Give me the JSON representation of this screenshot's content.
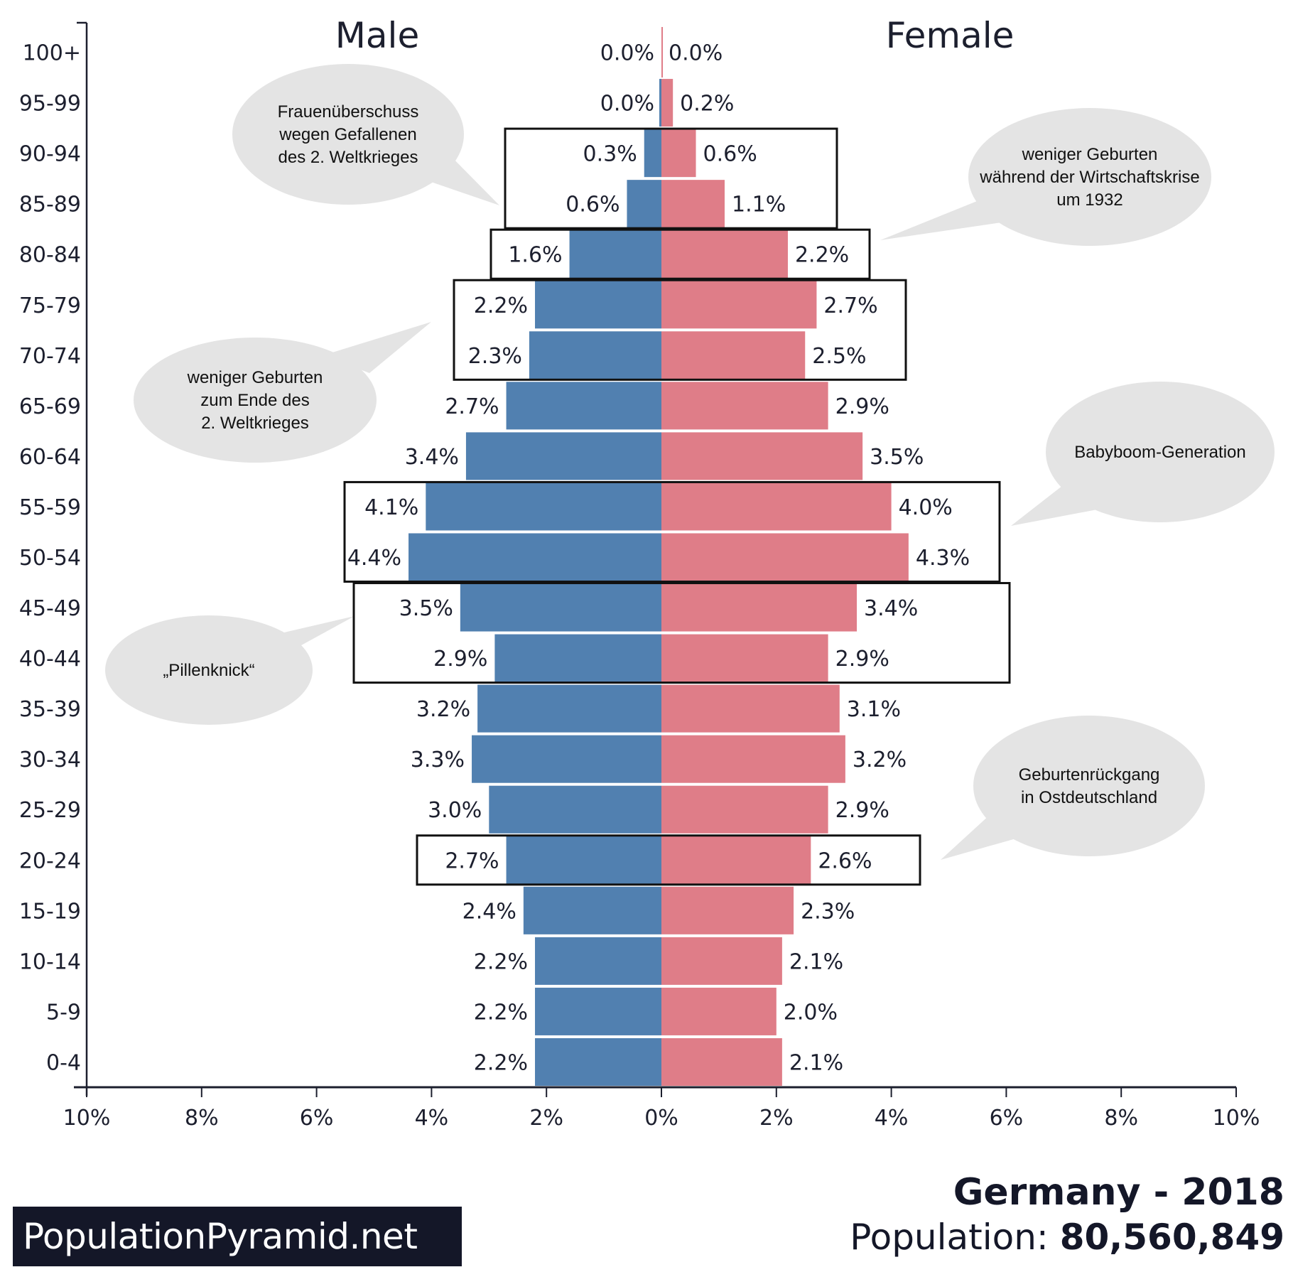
{
  "chart_data": {
    "type": "bar",
    "subtype": "population-pyramid",
    "title": "Germany - 2018",
    "population_label": "Population:",
    "population_value": "80,560,849",
    "xlabel": "",
    "ylabel": "",
    "xlim": [
      -10,
      10
    ],
    "x_ticks": [
      "10%",
      "8%",
      "6%",
      "4%",
      "2%",
      "0%",
      "2%",
      "4%",
      "6%",
      "8%",
      "10%"
    ],
    "grid": false,
    "categories": [
      "100+",
      "95-99",
      "90-94",
      "85-89",
      "80-84",
      "75-79",
      "70-74",
      "65-69",
      "60-64",
      "55-59",
      "50-54",
      "45-49",
      "40-44",
      "35-39",
      "30-34",
      "25-29",
      "20-24",
      "15-19",
      "10-14",
      "5-9",
      "0-4"
    ],
    "series": [
      {
        "name": "Male",
        "color": "#5180b0",
        "values": [
          0.0,
          0.0,
          0.3,
          0.6,
          1.6,
          2.2,
          2.3,
          2.7,
          3.4,
          4.1,
          4.4,
          3.5,
          2.9,
          3.2,
          3.3,
          3.0,
          2.7,
          2.4,
          2.2,
          2.2,
          2.2
        ],
        "labels": [
          "0.0%",
          "0.0%",
          "0.3%",
          "0.6%",
          "1.6%",
          "2.2%",
          "2.3%",
          "2.7%",
          "3.4%",
          "4.1%",
          "4.4%",
          "3.5%",
          "2.9%",
          "3.2%",
          "3.3%",
          "3.0%",
          "2.7%",
          "2.4%",
          "2.2%",
          "2.2%",
          "2.2%"
        ]
      },
      {
        "name": "Female",
        "color": "#df7d88",
        "values": [
          0.0,
          0.2,
          0.6,
          1.1,
          2.2,
          2.7,
          2.5,
          2.9,
          3.5,
          4.0,
          4.3,
          3.4,
          2.9,
          3.1,
          3.2,
          2.9,
          2.6,
          2.3,
          2.1,
          2.0,
          2.1
        ],
        "labels": [
          "0.0%",
          "0.2%",
          "0.6%",
          "1.1%",
          "2.2%",
          "2.7%",
          "2.5%",
          "2.9%",
          "3.5%",
          "4.0%",
          "4.3%",
          "3.4%",
          "2.9%",
          "3.1%",
          "3.2%",
          "2.9%",
          "2.6%",
          "2.3%",
          "2.1%",
          "2.0%",
          "2.1%"
        ]
      }
    ],
    "legend": {
      "left": "Male",
      "right": "Female",
      "placement": "top"
    },
    "highlight_groups": [
      {
        "rows": [
          "90-94",
          "85-89"
        ]
      },
      {
        "rows": [
          "80-84"
        ]
      },
      {
        "rows": [
          "75-79",
          "70-74"
        ]
      },
      {
        "rows": [
          "55-59",
          "50-54"
        ]
      },
      {
        "rows": [
          "45-49",
          "40-44"
        ]
      },
      {
        "rows": [
          "20-24"
        ]
      }
    ],
    "annotations": [
      {
        "id": "frauenueberschuss",
        "lines": [
          "Frauenüberschuss",
          "wegen Gefallenen",
          "des 2. Weltkrieges"
        ],
        "points_to": [
          "90-94",
          "85-89"
        ]
      },
      {
        "id": "wirtschaftskrise",
        "lines": [
          "weniger Geburten",
          "während der Wirtschaftskrise",
          "um 1932"
        ],
        "points_to": [
          "80-84"
        ]
      },
      {
        "id": "kriegsende",
        "lines": [
          "weniger Geburten",
          "zum Ende des",
          "2. Weltkrieges"
        ],
        "points_to": [
          "75-79",
          "70-74"
        ]
      },
      {
        "id": "babyboom",
        "lines": [
          "Babyboom-Generation"
        ],
        "points_to": [
          "55-59",
          "50-54"
        ]
      },
      {
        "id": "pillenknick",
        "lines": [
          "„Pillenknick“"
        ],
        "points_to": [
          "45-49",
          "40-44"
        ]
      },
      {
        "id": "ostdeutschland",
        "lines": [
          "Geburtenrückgang",
          "in Ostdeutschland"
        ],
        "points_to": [
          "20-24"
        ]
      }
    ]
  },
  "colors": {
    "male": "#5180b0",
    "female": "#df7d88",
    "text": "#1c1f2e",
    "bubble": "#e4e4e4",
    "logo_bg": "#141728"
  },
  "footer": {
    "logo_text": "PopulationPyramid.net",
    "title": "Germany - 2018",
    "population_label": "Population:",
    "population_value": "80,560,849"
  }
}
